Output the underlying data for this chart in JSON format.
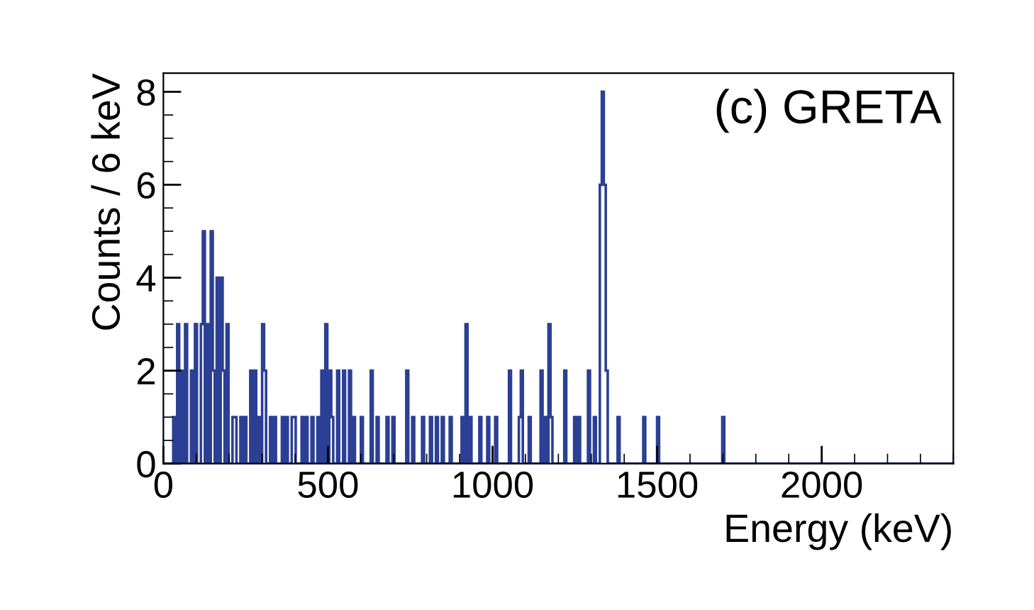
{
  "chart_data": {
    "type": "histogram",
    "xlabel": "Energy (keV)",
    "ylabel": "Counts / 6 keV",
    "annotations": [
      "(c) GRETA"
    ],
    "color": "#2b3f94",
    "bins": [
      0,
      30,
      36,
      42,
      48,
      54,
      60,
      66,
      72,
      84,
      90,
      96,
      102,
      114,
      120,
      126,
      132,
      138,
      144,
      150,
      156,
      162,
      168,
      174,
      180,
      186,
      192,
      198,
      210,
      216,
      222,
      234,
      240,
      246,
      252,
      264,
      270,
      276,
      282,
      288,
      294,
      300,
      306,
      312,
      324,
      330,
      336,
      342,
      360,
      366,
      372,
      378,
      390,
      396,
      402,
      420,
      426,
      432,
      438,
      450,
      456,
      468,
      474,
      480,
      486,
      492,
      498,
      504,
      510,
      516,
      528,
      534,
      546,
      552,
      564,
      570,
      576,
      582,
      600,
      606,
      630,
      636,
      648,
      654,
      678,
      684,
      696,
      702,
      738,
      744,
      756,
      762,
      786,
      792,
      810,
      816,
      828,
      834,
      846,
      852,
      870,
      876,
      906,
      912,
      918,
      924,
      930,
      936,
      960,
      966,
      984,
      990,
      1008,
      1014,
      1050,
      1056,
      1080,
      1086,
      1092,
      1110,
      1116,
      1146,
      1152,
      1158,
      1164,
      1170,
      1176,
      1182,
      1218,
      1224,
      1248,
      1254,
      1260,
      1266,
      1290,
      1296,
      1308,
      1314,
      1326,
      1332,
      1338,
      1344,
      1350,
      1380,
      1386,
      1458,
      1464,
      1500,
      1506,
      1698,
      1704,
      2400
    ],
    "values": [
      0,
      1,
      0,
      3,
      0,
      2,
      0,
      3,
      0,
      2,
      0,
      3,
      0,
      3,
      5,
      0,
      3,
      0,
      5,
      2,
      0,
      4,
      0,
      4,
      2,
      0,
      3,
      0,
      1,
      1,
      0,
      1,
      0,
      1,
      0,
      2,
      0,
      2,
      0,
      1,
      0,
      3,
      2,
      0,
      1,
      0,
      1,
      0,
      1,
      0,
      1,
      0,
      1,
      1,
      0,
      1,
      0,
      1,
      0,
      1,
      0,
      1,
      0,
      2,
      0,
      3,
      0,
      2,
      1,
      0,
      2,
      0,
      2,
      0,
      2,
      0,
      1,
      0,
      1,
      0,
      2,
      0,
      1,
      0,
      1,
      0,
      1,
      0,
      2,
      0,
      1,
      0,
      1,
      0,
      1,
      0,
      1,
      0,
      1,
      0,
      1,
      0,
      1,
      0,
      3,
      0,
      1,
      0,
      1,
      0,
      1,
      0,
      1,
      0,
      2,
      0,
      1,
      2,
      0,
      1,
      0,
      2,
      0,
      1,
      0,
      3,
      1,
      0,
      2,
      0,
      1,
      0,
      1,
      0,
      2,
      0,
      1,
      0,
      6,
      8,
      6,
      2,
      0,
      1,
      0,
      1,
      0,
      1,
      0,
      1,
      0
    ],
    "xlim": [
      0,
      2400
    ],
    "xticks": [
      0,
      500,
      1000,
      1500,
      2000
    ],
    "ylim": [
      0,
      8.4
    ],
    "yticks": [
      0,
      2,
      4,
      6,
      8
    ],
    "grid": false
  }
}
